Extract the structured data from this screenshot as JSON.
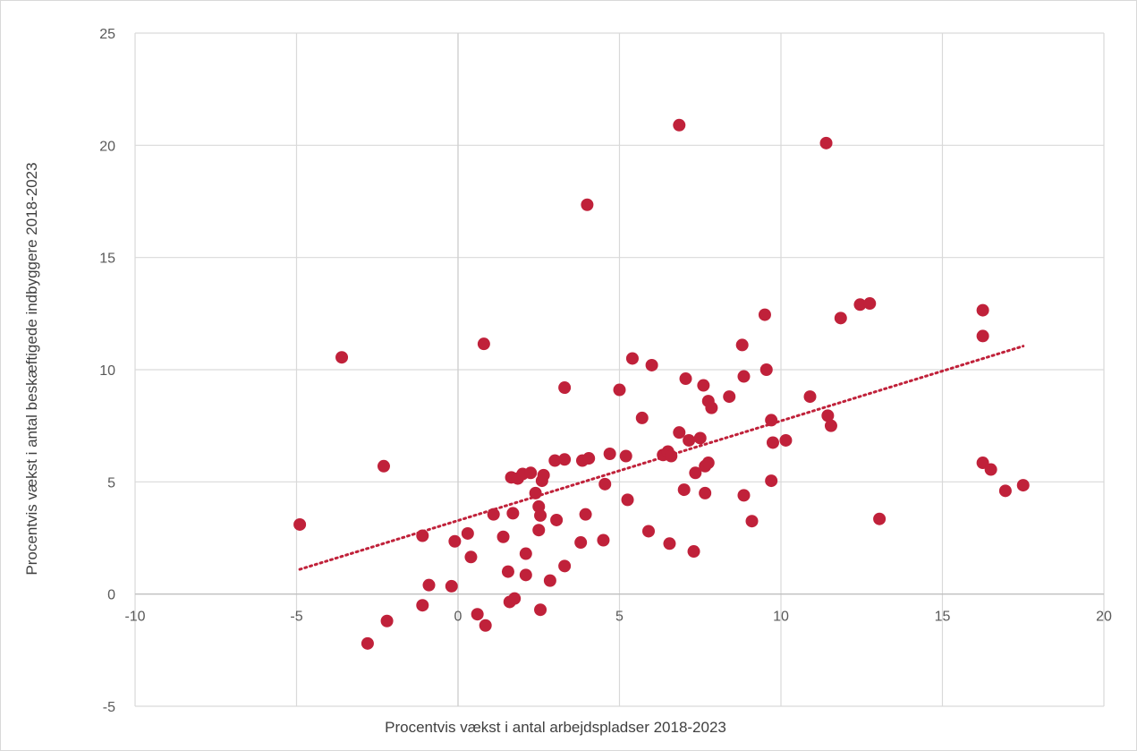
{
  "chart_data": {
    "type": "scatter",
    "title": "",
    "xlabel": "Procentvis vækst i antal arbejdspladser 2018-2023",
    "ylabel": "Procentvis vækst i antal beskæftigede indbyggere 2018-2023",
    "xlim": [
      -10,
      20
    ],
    "ylim": [
      -5,
      25
    ],
    "x_ticks": [
      -10,
      -5,
      0,
      5,
      10,
      15,
      20
    ],
    "y_ticks": [
      -5,
      0,
      5,
      10,
      15,
      20,
      25
    ],
    "x_tick_labels": [
      "-10",
      "-5",
      "0",
      "5",
      "10",
      "15",
      "20"
    ],
    "y_tick_labels": [
      "-5",
      "0",
      "5",
      "10",
      "15",
      "20",
      "25"
    ],
    "grid": true,
    "legend": "none",
    "marker_color": "#c0213a",
    "trendline": {
      "type": "linear",
      "style": "dotted",
      "color": "#c0213a",
      "from": [
        -4.9,
        1.1
      ],
      "to": [
        17.5,
        11.05
      ]
    },
    "points": [
      [
        -4.9,
        3.1
      ],
      [
        -3.6,
        10.55
      ],
      [
        -2.8,
        -2.2
      ],
      [
        -2.3,
        5.7
      ],
      [
        -2.2,
        -1.2
      ],
      [
        -1.1,
        2.6
      ],
      [
        -1.1,
        -0.5
      ],
      [
        -0.9,
        0.4
      ],
      [
        -0.2,
        0.35
      ],
      [
        -0.1,
        2.35
      ],
      [
        0.3,
        2.7
      ],
      [
        0.4,
        1.65
      ],
      [
        0.6,
        -0.9
      ],
      [
        0.8,
        11.15
      ],
      [
        0.85,
        -1.4
      ],
      [
        1.1,
        3.55
      ],
      [
        1.4,
        2.55
      ],
      [
        1.55,
        1.0
      ],
      [
        1.6,
        -0.35
      ],
      [
        1.65,
        5.2
      ],
      [
        1.7,
        3.6
      ],
      [
        1.75,
        -0.2
      ],
      [
        1.85,
        5.15
      ],
      [
        2.0,
        5.35
      ],
      [
        2.1,
        1.8
      ],
      [
        2.1,
        0.85
      ],
      [
        2.25,
        5.4
      ],
      [
        2.4,
        4.5
      ],
      [
        2.5,
        3.9
      ],
      [
        2.5,
        2.85
      ],
      [
        2.55,
        3.5
      ],
      [
        2.55,
        -0.7
      ],
      [
        2.6,
        5.05
      ],
      [
        2.65,
        5.3
      ],
      [
        2.85,
        0.6
      ],
      [
        3.0,
        5.95
      ],
      [
        3.05,
        3.3
      ],
      [
        3.3,
        6.0
      ],
      [
        3.3,
        9.2
      ],
      [
        3.3,
        1.25
      ],
      [
        3.8,
        2.3
      ],
      [
        3.85,
        5.95
      ],
      [
        3.95,
        3.55
      ],
      [
        4.0,
        17.35
      ],
      [
        4.05,
        6.05
      ],
      [
        4.5,
        2.4
      ],
      [
        4.55,
        4.9
      ],
      [
        4.7,
        6.25
      ],
      [
        5.0,
        9.1
      ],
      [
        5.2,
        6.15
      ],
      [
        5.25,
        4.2
      ],
      [
        5.4,
        10.5
      ],
      [
        5.7,
        7.85
      ],
      [
        5.9,
        2.8
      ],
      [
        6.0,
        10.2
      ],
      [
        6.35,
        6.2
      ],
      [
        6.5,
        6.35
      ],
      [
        6.55,
        2.25
      ],
      [
        6.6,
        6.15
      ],
      [
        6.85,
        7.2
      ],
      [
        6.85,
        20.9
      ],
      [
        7.0,
        4.65
      ],
      [
        7.05,
        9.6
      ],
      [
        7.15,
        6.85
      ],
      [
        7.3,
        1.9
      ],
      [
        7.35,
        5.4
      ],
      [
        7.5,
        6.95
      ],
      [
        7.6,
        9.3
      ],
      [
        7.65,
        5.7
      ],
      [
        7.65,
        4.5
      ],
      [
        7.75,
        8.6
      ],
      [
        7.75,
        5.85
      ],
      [
        7.85,
        8.3
      ],
      [
        8.4,
        8.8
      ],
      [
        8.8,
        11.1
      ],
      [
        8.85,
        9.7
      ],
      [
        8.85,
        4.4
      ],
      [
        9.1,
        3.25
      ],
      [
        9.5,
        12.45
      ],
      [
        9.55,
        10.0
      ],
      [
        9.7,
        7.75
      ],
      [
        9.7,
        5.05
      ],
      [
        9.75,
        6.75
      ],
      [
        10.15,
        6.85
      ],
      [
        10.9,
        8.8
      ],
      [
        11.4,
        20.1
      ],
      [
        11.45,
        7.95
      ],
      [
        11.55,
        7.5
      ],
      [
        11.85,
        12.3
      ],
      [
        12.45,
        12.9
      ],
      [
        12.75,
        12.95
      ],
      [
        13.05,
        3.35
      ],
      [
        16.25,
        12.65
      ],
      [
        16.25,
        11.5
      ],
      [
        16.25,
        5.85
      ],
      [
        16.5,
        5.55
      ],
      [
        16.95,
        4.6
      ],
      [
        17.5,
        4.85
      ]
    ]
  }
}
